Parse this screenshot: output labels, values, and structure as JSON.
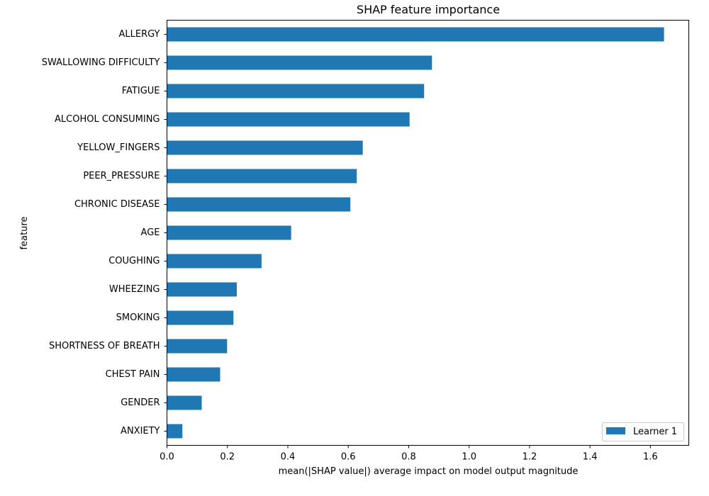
{
  "chart_data": {
    "type": "bar",
    "orientation": "horizontal",
    "title": "SHAP feature importance",
    "xlabel": "mean(|SHAP value|) average impact on model output magnitude",
    "ylabel": "feature",
    "categories": [
      "ALLERGY ",
      "SWALLOWING DIFFICULTY",
      "FATIGUE ",
      "ALCOHOL CONSUMING",
      "YELLOW_FINGERS",
      "PEER_PRESSURE",
      "CHRONIC DISEASE",
      "AGE",
      "COUGHING",
      "WHEEZING",
      "SMOKING",
      "SHORTNESS OF BREATH",
      "CHEST PAIN",
      "GENDER",
      "ANXIETY"
    ],
    "series": [
      {
        "name": "Learner 1",
        "color": "#1f77b4",
        "values": [
          1.645,
          0.877,
          0.851,
          0.803,
          0.648,
          0.628,
          0.607,
          0.411,
          0.313,
          0.231,
          0.22,
          0.199,
          0.176,
          0.115,
          0.051
        ]
      }
    ],
    "xlim": [
      0,
      1.727
    ],
    "xticks": [
      "0.0",
      "0.2",
      "0.4",
      "0.6",
      "0.8",
      "1.0",
      "1.2",
      "1.4",
      "1.6"
    ],
    "grid": false,
    "legend_position": "lower-right"
  }
}
